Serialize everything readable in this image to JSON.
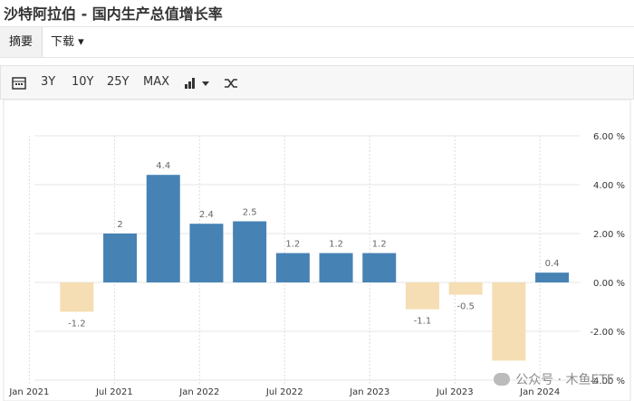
{
  "header": {
    "title": "沙特阿拉伯 - 国内生产总值增长率"
  },
  "tabs": [
    "摘要",
    "下载"
  ],
  "toolbar": [
    "3Y",
    "10Y",
    "25Y",
    "MAX"
  ],
  "watermark": "公众号 · 木鱼ETF",
  "chart_data": {
    "type": "bar",
    "categories": [
      null,
      null,
      null,
      null,
      null,
      null,
      null,
      null,
      null,
      null,
      null,
      null
    ],
    "values": [
      -1.2,
      2,
      4.4,
      2.4,
      2.5,
      1.2,
      1.2,
      1.2,
      -1.1,
      -0.5,
      -3.2,
      0.4
    ],
    "value_labels": [
      "-1.2",
      "2",
      "4.4",
      "2.4",
      "2.5",
      "1.2",
      "1.2",
      "1.2",
      "-1.1",
      "-0.5",
      null,
      "0.4"
    ],
    "x_labels": [
      "Jan 2021",
      "Jul 2021",
      "Jan 2022",
      "Jul 2022",
      "Jan 2023",
      "Jul 2023",
      "Jan 2024"
    ],
    "colors": {
      "positive": "#4682b4",
      "negative": "#f5deb3"
    },
    "ylim": [
      -4,
      6
    ],
    "yticks": [
      {
        "value": 6,
        "label": "6.00 %"
      },
      {
        "value": 4,
        "label": "4.00 %"
      },
      {
        "value": 2,
        "label": "2.00 %"
      },
      {
        "value": 0,
        "label": "0.00 %"
      },
      {
        "value": -2,
        "label": "-2.00 %"
      },
      {
        "value": -4,
        "label": "-4.00 %"
      }
    ],
    "y_axis_side": "right",
    "grid": true
  }
}
